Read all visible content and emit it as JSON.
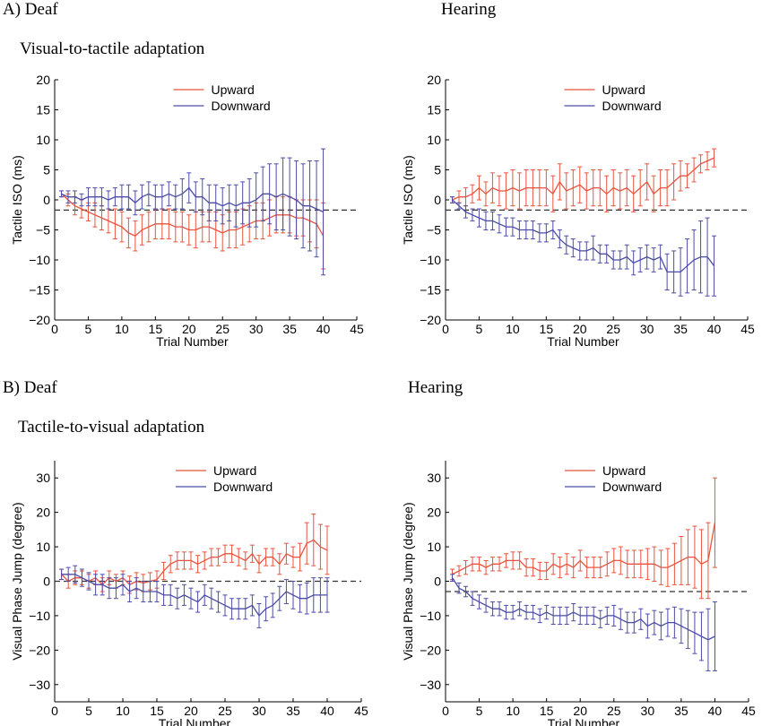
{
  "labels": {
    "row_a_left": "A) Deaf",
    "row_a_right": "Hearing",
    "row_a_sub": "Visual-to-tactile adaptation",
    "row_b_left": "B) Deaf",
    "row_b_right": "Hearing",
    "row_b_sub": "Tactile-to-visual adaptation"
  },
  "colors": {
    "upward": "#e8543f",
    "downward": "#4c4ca6",
    "axis": "#000000",
    "baseline": "#333333"
  },
  "chart_data": [
    {
      "type": "line",
      "xlabel": "Trial Number",
      "ylabel": "Tactile ISO (ms)",
      "xlim": [
        0,
        45
      ],
      "ylim": [
        -20,
        20
      ],
      "xticks": [
        0,
        5,
        10,
        15,
        20,
        25,
        30,
        35,
        40,
        45
      ],
      "yticks": [
        -20,
        -15,
        -10,
        -5,
        0,
        5,
        10,
        15,
        20
      ],
      "baseline": -1.7,
      "legend": "top-center",
      "series": [
        {
          "name": "Upward",
          "color": "upward",
          "x": [
            1,
            2,
            3,
            4,
            5,
            6,
            7,
            8,
            9,
            10,
            11,
            12,
            13,
            14,
            15,
            16,
            17,
            18,
            19,
            20,
            21,
            22,
            23,
            24,
            25,
            26,
            27,
            28,
            29,
            30,
            31,
            32,
            33,
            34,
            35,
            36,
            37,
            38,
            39,
            40
          ],
          "y": [
            1,
            0,
            -1,
            -1.5,
            -2,
            -2.5,
            -3,
            -3.5,
            -4,
            -4.5,
            -5.5,
            -6,
            -5,
            -4.5,
            -4,
            -4,
            -4,
            -4.5,
            -4.5,
            -5,
            -5,
            -4.5,
            -4.5,
            -5,
            -5.5,
            -5,
            -5,
            -4.5,
            -4,
            -3.5,
            -3.5,
            -3,
            -2.5,
            -2.5,
            -2.5,
            -3,
            -3,
            -3.5,
            -4,
            -6
          ],
          "err": [
            0.5,
            1,
            1.5,
            1.5,
            1.5,
            2,
            2,
            2,
            2.5,
            2.5,
            2.5,
            2.5,
            2.5,
            2.5,
            2.5,
            2.5,
            2.5,
            2.5,
            2.5,
            2.5,
            3,
            2.5,
            2.5,
            3,
            3,
            3,
            3,
            3,
            3,
            3,
            3,
            3,
            3,
            3,
            3,
            3,
            3,
            3.5,
            4,
            5.5
          ]
        },
        {
          "name": "Downward",
          "color": "downward",
          "x": [
            1,
            2,
            3,
            4,
            5,
            6,
            7,
            8,
            9,
            10,
            11,
            12,
            13,
            14,
            15,
            16,
            17,
            18,
            19,
            20,
            21,
            22,
            23,
            24,
            25,
            26,
            27,
            28,
            29,
            30,
            31,
            32,
            33,
            34,
            35,
            36,
            37,
            38,
            39,
            40
          ],
          "y": [
            1,
            0.5,
            0.5,
            0,
            0.5,
            0.5,
            0.5,
            0,
            0.5,
            0.5,
            0.5,
            -0.5,
            0.5,
            1,
            0.5,
            0.5,
            1,
            0.5,
            1,
            2,
            0.5,
            0.5,
            -0.5,
            -0.5,
            -1,
            -0.5,
            -1,
            -0.5,
            -0.5,
            0,
            1,
            1,
            0.5,
            1,
            0.5,
            0,
            -1,
            -1,
            -1.5,
            -2
          ],
          "err": [
            0.5,
            1,
            1,
            1,
            1.5,
            1.5,
            1.5,
            1.5,
            1.5,
            2,
            2,
            2,
            2,
            2,
            2,
            2,
            2,
            2,
            2.5,
            2.5,
            2.5,
            3,
            3,
            3,
            3,
            3,
            3.5,
            3.5,
            4,
            4.5,
            4.5,
            5,
            5.5,
            6,
            6.5,
            6.5,
            7,
            7.5,
            8,
            10.5
          ]
        }
      ]
    },
    {
      "type": "line",
      "xlabel": "Trial Number",
      "ylabel": "Tactile ISO (ms)",
      "xlim": [
        0,
        45
      ],
      "ylim": [
        -20,
        20
      ],
      "xticks": [
        0,
        5,
        10,
        15,
        20,
        25,
        30,
        35,
        40,
        45
      ],
      "yticks": [
        -20,
        -15,
        -10,
        -5,
        0,
        5,
        10,
        15,
        20
      ],
      "baseline": -1.7,
      "legend": "top-center",
      "series": [
        {
          "name": "Upward",
          "color": "upward",
          "x": [
            1,
            2,
            3,
            4,
            5,
            6,
            7,
            8,
            9,
            10,
            11,
            12,
            13,
            14,
            15,
            16,
            17,
            18,
            19,
            20,
            21,
            22,
            23,
            24,
            25,
            26,
            27,
            28,
            29,
            30,
            31,
            32,
            33,
            34,
            35,
            36,
            37,
            38,
            39,
            40
          ],
          "y": [
            0,
            0.5,
            0.5,
            1,
            2,
            1,
            2,
            1.5,
            1.5,
            2,
            1.5,
            2,
            2,
            2,
            2,
            1,
            3,
            1.5,
            2,
            2.5,
            1.5,
            2,
            2,
            1,
            2,
            1.5,
            2,
            1,
            2,
            3,
            1,
            2,
            2,
            3,
            4,
            4,
            5,
            6,
            6.5,
            7
          ],
          "err": [
            0.5,
            1,
            1.5,
            1.5,
            2,
            2,
            2.5,
            2.5,
            3,
            3,
            3,
            3,
            3,
            3,
            3,
            3,
            3,
            3,
            3,
            3,
            3,
            3,
            3,
            3,
            3,
            3,
            3,
            3,
            3,
            3,
            3,
            3,
            3,
            3,
            2.5,
            2,
            2,
            1.5,
            1.5,
            1.5
          ]
        },
        {
          "name": "Downward",
          "color": "downward",
          "x": [
            1,
            2,
            3,
            4,
            5,
            6,
            7,
            8,
            9,
            10,
            11,
            12,
            13,
            14,
            15,
            16,
            17,
            18,
            19,
            20,
            21,
            22,
            23,
            24,
            25,
            26,
            27,
            28,
            29,
            30,
            31,
            32,
            33,
            34,
            35,
            36,
            37,
            38,
            39,
            40
          ],
          "y": [
            0,
            -1,
            -2,
            -2.5,
            -3,
            -3.5,
            -3.5,
            -4,
            -4.5,
            -4.5,
            -5,
            -5,
            -5,
            -5.5,
            -5.5,
            -5,
            -6.5,
            -7.5,
            -8,
            -8.5,
            -8.5,
            -8,
            -9,
            -9,
            -10,
            -10,
            -9.5,
            -10.5,
            -10,
            -9.5,
            -10,
            -9.5,
            -12,
            -12,
            -12,
            -11,
            -10,
            -9.5,
            -9.5,
            -11
          ],
          "err": [
            0.5,
            0.5,
            1,
            1,
            1.5,
            1.5,
            1.5,
            1.5,
            1.5,
            1.5,
            1.5,
            1.5,
            1.5,
            1.5,
            1.5,
            1.5,
            1.5,
            1.5,
            1.5,
            1.5,
            1.5,
            2,
            1.5,
            1.5,
            1.5,
            1.5,
            2,
            2,
            2,
            2,
            2,
            2,
            3,
            3.5,
            4,
            4.5,
            5,
            6,
            6.5,
            5
          ]
        }
      ]
    },
    {
      "type": "line",
      "xlabel": "Trial Number",
      "ylabel": "Visual Phase Jump (degree)",
      "xlim": [
        0,
        45
      ],
      "ylim": [
        -35,
        35
      ],
      "xticks": [
        0,
        5,
        10,
        15,
        20,
        25,
        30,
        35,
        40,
        45
      ],
      "yticks": [
        -30,
        -20,
        -10,
        0,
        10,
        20,
        30
      ],
      "baseline": 0,
      "legend": "top-center",
      "series": [
        {
          "name": "Upward",
          "color": "upward",
          "x": [
            1,
            2,
            3,
            4,
            5,
            6,
            7,
            8,
            9,
            10,
            11,
            12,
            13,
            14,
            15,
            16,
            17,
            18,
            19,
            20,
            21,
            22,
            23,
            24,
            25,
            26,
            27,
            28,
            29,
            30,
            31,
            32,
            33,
            34,
            35,
            36,
            37,
            38,
            39,
            40
          ],
          "y": [
            2,
            0,
            1,
            1,
            0,
            1,
            -1,
            1,
            0,
            1,
            -1,
            0,
            -0.5,
            0,
            0.5,
            3,
            5,
            6,
            6,
            6,
            5,
            6,
            7,
            7,
            8,
            8,
            7,
            6,
            8,
            5,
            7,
            7,
            5,
            8,
            7,
            7,
            11,
            12,
            10,
            9
          ],
          "err": [
            1.5,
            2,
            2,
            2,
            2,
            2,
            2,
            2,
            2,
            2,
            2.5,
            2.5,
            2.5,
            2.5,
            2.5,
            2.5,
            2.5,
            2.5,
            2.5,
            2.5,
            2.5,
            2.5,
            2.5,
            2.5,
            2.5,
            2.5,
            2.5,
            2.5,
            2.5,
            2.5,
            2.5,
            2.5,
            3,
            3,
            3,
            4,
            6,
            7.5,
            6.5,
            7
          ]
        },
        {
          "name": "Downward",
          "color": "downward",
          "x": [
            1,
            2,
            3,
            4,
            5,
            6,
            7,
            8,
            9,
            10,
            11,
            12,
            13,
            14,
            15,
            16,
            17,
            18,
            19,
            20,
            21,
            22,
            23,
            24,
            25,
            26,
            27,
            28,
            29,
            30,
            31,
            32,
            33,
            34,
            35,
            36,
            37,
            38,
            39,
            40
          ],
          "y": [
            2,
            2,
            2,
            1,
            0,
            -1,
            -1,
            -2,
            -2,
            -1,
            -3,
            -2,
            -3,
            -3,
            -3,
            -4,
            -4,
            -5,
            -4,
            -5,
            -6,
            -4,
            -5,
            -6,
            -7,
            -8,
            -8,
            -8,
            -7,
            -10,
            -8,
            -7,
            -5,
            -3,
            -4,
            -5,
            -5,
            -4,
            -4,
            -4
          ],
          "err": [
            1.5,
            2,
            2.5,
            2.5,
            2.5,
            3,
            3,
            3,
            3,
            3,
            3,
            3,
            3,
            3,
            3,
            3,
            3,
            3,
            3,
            3,
            3,
            3,
            3,
            3,
            3,
            3,
            3,
            3,
            3,
            3.5,
            3.5,
            3.5,
            3.5,
            3.5,
            4,
            4,
            4.5,
            5,
            5,
            5
          ]
        }
      ]
    },
    {
      "type": "line",
      "xlabel": "Trial Number",
      "ylabel": "Visual Phase Jump (degree)",
      "xlim": [
        0,
        45
      ],
      "ylim": [
        -35,
        35
      ],
      "xticks": [
        0,
        5,
        10,
        15,
        20,
        25,
        30,
        35,
        40,
        45
      ],
      "yticks": [
        -30,
        -20,
        -10,
        0,
        10,
        20,
        30
      ],
      "baseline": -3,
      "legend": "top-center",
      "series": [
        {
          "name": "Upward",
          "color": "upward",
          "x": [
            1,
            2,
            3,
            4,
            5,
            6,
            7,
            8,
            9,
            10,
            11,
            12,
            13,
            14,
            15,
            16,
            17,
            18,
            19,
            20,
            21,
            22,
            23,
            24,
            25,
            26,
            27,
            28,
            29,
            30,
            31,
            32,
            33,
            34,
            35,
            36,
            37,
            38,
            39,
            40
          ],
          "y": [
            2,
            3,
            4,
            5,
            5,
            4,
            5,
            5,
            6,
            6,
            6,
            4,
            4,
            3,
            3,
            5,
            4,
            5,
            4,
            6,
            4,
            4,
            4,
            5,
            6,
            6,
            5,
            5,
            5,
            5,
            5,
            4,
            4,
            5,
            6,
            7,
            7,
            5,
            6,
            17
          ],
          "err": [
            1.5,
            1.5,
            2,
            2,
            2,
            2,
            2,
            2,
            2,
            2.5,
            2.5,
            2.5,
            2.5,
            2.5,
            2.5,
            3,
            3,
            3,
            3,
            3,
            3,
            3,
            3,
            3.5,
            3.5,
            4,
            4,
            4,
            4,
            4.5,
            5,
            5,
            5.5,
            6,
            7,
            8,
            9,
            10,
            11,
            13
          ]
        },
        {
          "name": "Downward",
          "color": "downward",
          "x": [
            1,
            2,
            3,
            4,
            5,
            6,
            7,
            8,
            9,
            10,
            11,
            12,
            13,
            14,
            15,
            16,
            17,
            18,
            19,
            20,
            21,
            22,
            23,
            24,
            25,
            26,
            27,
            28,
            29,
            30,
            31,
            32,
            33,
            34,
            35,
            36,
            37,
            38,
            39,
            40
          ],
          "y": [
            1,
            -2,
            -3,
            -5,
            -6,
            -7,
            -8,
            -8,
            -9,
            -9,
            -8,
            -9,
            -9,
            -10,
            -9,
            -10,
            -10,
            -10,
            -9,
            -10,
            -10,
            -10,
            -11,
            -10,
            -10,
            -11,
            -12,
            -12,
            -11,
            -13,
            -12,
            -13,
            -12,
            -12,
            -13,
            -14,
            -15,
            -16,
            -17,
            -16
          ],
          "err": [
            1,
            1.5,
            1.5,
            2,
            2,
            2,
            2,
            2,
            2,
            2,
            2,
            2,
            2,
            2,
            2,
            2.5,
            2.5,
            2.5,
            2.5,
            2.5,
            2.5,
            2.5,
            2.5,
            2.5,
            3,
            3,
            3,
            3,
            3,
            3.5,
            3.5,
            4,
            4,
            4.5,
            5,
            5.5,
            6,
            7,
            9,
            10
          ]
        }
      ]
    }
  ]
}
